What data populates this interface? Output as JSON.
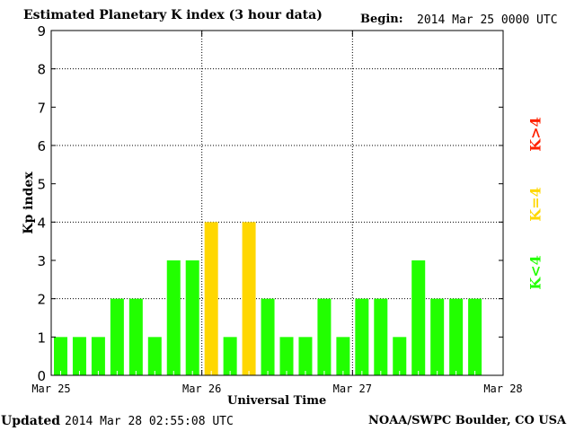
{
  "chart_data": {
    "type": "bar",
    "title": "Estimated Planetary K index (3 hour data)",
    "begin_label": "Begin:",
    "begin_value": "2014 Mar 25 0000 UTC",
    "xlabel": "Universal Time",
    "ylabel": "Kp index",
    "ylim": [
      0,
      9
    ],
    "yticks": [
      "0",
      "1",
      "2",
      "3",
      "4",
      "5",
      "6",
      "7",
      "8",
      "9"
    ],
    "xticks": [
      "Mar 25",
      "Mar 26",
      "Mar 27",
      "Mar 28"
    ],
    "grid": true,
    "interval_hours": 3,
    "values": [
      1,
      1,
      1,
      2,
      2,
      1,
      3,
      3,
      4,
      1,
      4,
      2,
      1,
      1,
      2,
      1,
      2,
      2,
      1,
      3,
      2,
      2,
      2
    ],
    "colors": {
      "below4": "#22ff00",
      "equal4": "#ffd700",
      "above4": "#ff2200"
    },
    "legend": {
      "above": "K>4",
      "equal": "K=4",
      "below": "K<4"
    },
    "legend_placement": "right"
  },
  "footer": {
    "updated_label": "Updated",
    "updated_value": "2014 Mar 28 02:55:08 UTC",
    "source": "NOAA/SWPC Boulder, CO USA"
  }
}
